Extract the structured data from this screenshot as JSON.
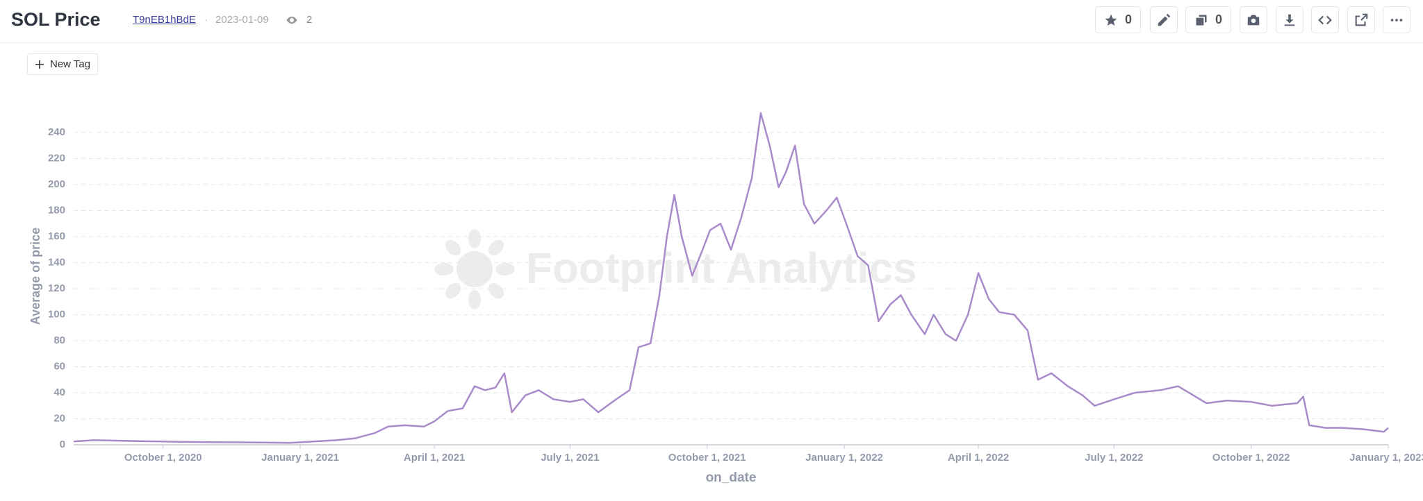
{
  "header": {
    "title": "SOL Price",
    "id": "T9nEB1hBdE",
    "separator": "·",
    "date": "2023-01-09",
    "views": "2",
    "favorites": "0",
    "copies": "0"
  },
  "new_tag": "New Tag",
  "watermark": "Footprint Analytics",
  "chart_data": {
    "type": "line",
    "y_label": "Average of price",
    "x_label": "on_date",
    "color": "#a98bcb",
    "grid": true,
    "ylim": [
      0,
      260
    ],
    "yticks": [
      0,
      20,
      40,
      60,
      80,
      100,
      120,
      140,
      160,
      180,
      200,
      220,
      240
    ],
    "xlim": [
      "2020-08-02",
      "2023-01-01"
    ],
    "xticks": [
      {
        "value": "2020-10-01",
        "label": "October 1, 2020"
      },
      {
        "value": "2021-01-01",
        "label": "January 1, 2021"
      },
      {
        "value": "2021-04-01",
        "label": "April 1, 2021"
      },
      {
        "value": "2021-07-01",
        "label": "July 1, 2021"
      },
      {
        "value": "2021-10-01",
        "label": "October 1, 2021"
      },
      {
        "value": "2022-01-01",
        "label": "January 1, 2022"
      },
      {
        "value": "2022-04-01",
        "label": "April 1, 2022"
      },
      {
        "value": "2022-07-01",
        "label": "July 1, 2022"
      },
      {
        "value": "2022-10-01",
        "label": "October 1, 2022"
      },
      {
        "value": "2023-01-01",
        "label": "January 1, 2023"
      }
    ],
    "x": [
      "2020-08-02",
      "2020-08-15",
      "2020-08-30",
      "2020-09-15",
      "2020-10-01",
      "2020-11-01",
      "2020-12-01",
      "2020-12-25",
      "2021-01-10",
      "2021-01-25",
      "2021-02-07",
      "2021-02-20",
      "2021-03-01",
      "2021-03-12",
      "2021-03-25",
      "2021-04-01",
      "2021-04-10",
      "2021-04-20",
      "2021-04-28",
      "2021-05-05",
      "2021-05-12",
      "2021-05-18",
      "2021-05-23",
      "2021-06-01",
      "2021-06-10",
      "2021-06-20",
      "2021-07-01",
      "2021-07-10",
      "2021-07-20",
      "2021-08-01",
      "2021-08-10",
      "2021-08-16",
      "2021-08-24",
      "2021-08-30",
      "2021-09-04",
      "2021-09-09",
      "2021-09-14",
      "2021-09-21",
      "2021-09-28",
      "2021-10-03",
      "2021-10-10",
      "2021-10-17",
      "2021-10-24",
      "2021-10-31",
      "2021-11-06",
      "2021-11-12",
      "2021-11-18",
      "2021-11-23",
      "2021-11-29",
      "2021-12-05",
      "2021-12-12",
      "2021-12-20",
      "2021-12-27",
      "2022-01-03",
      "2022-01-10",
      "2022-01-17",
      "2022-01-24",
      "2022-02-01",
      "2022-02-08",
      "2022-02-15",
      "2022-02-24",
      "2022-03-02",
      "2022-03-10",
      "2022-03-17",
      "2022-03-25",
      "2022-04-01",
      "2022-04-08",
      "2022-04-15",
      "2022-04-25",
      "2022-05-04",
      "2022-05-11",
      "2022-05-20",
      "2022-05-31",
      "2022-06-10",
      "2022-06-18",
      "2022-07-01",
      "2022-07-15",
      "2022-08-01",
      "2022-08-13",
      "2022-09-01",
      "2022-09-15",
      "2022-10-01",
      "2022-10-15",
      "2022-11-01",
      "2022-11-05",
      "2022-11-09",
      "2022-11-20",
      "2022-12-01",
      "2022-12-15",
      "2022-12-29",
      "2023-01-01"
    ],
    "values": [
      2.5,
      3.5,
      3.2,
      2.8,
      2.5,
      2,
      1.8,
      1.5,
      2.5,
      3.5,
      5,
      9,
      14,
      15,
      14,
      18,
      26,
      28,
      45,
      42,
      44,
      55,
      25,
      38,
      42,
      35,
      33,
      35,
      25,
      35,
      42,
      75,
      78,
      115,
      160,
      192,
      160,
      130,
      150,
      165,
      170,
      150,
      175,
      205,
      255,
      230,
      198,
      210,
      230,
      185,
      170,
      180,
      190,
      168,
      145,
      138,
      95,
      108,
      115,
      100,
      85,
      100,
      85,
      80,
      100,
      132,
      112,
      102,
      100,
      88,
      50,
      55,
      45,
      38,
      30,
      35,
      40,
      42,
      45,
      32,
      34,
      33,
      30,
      32,
      37,
      15,
      13,
      13,
      12,
      10,
      13
    ]
  }
}
